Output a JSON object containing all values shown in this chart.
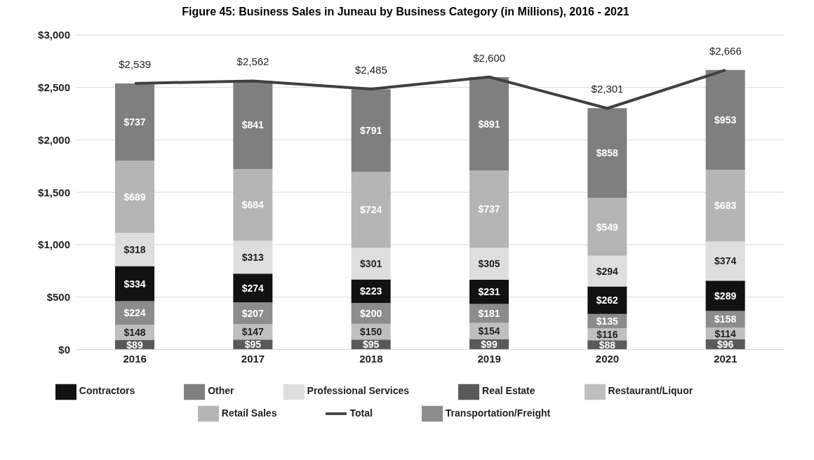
{
  "chart_data": {
    "type": "bar",
    "stacked": true,
    "title": "Figure 45: Business Sales in Juneau by Business Category (in Millions), 2016 - 2021",
    "categories": [
      "2016",
      "2017",
      "2018",
      "2019",
      "2020",
      "2021"
    ],
    "series": [
      {
        "name": "Real Estate",
        "color": "#595959",
        "values": [
          89,
          95,
          95,
          99,
          88,
          96
        ],
        "value_labels": [
          "$89",
          "$95",
          "$95",
          "$99",
          "$88",
          "$96"
        ]
      },
      {
        "name": "Restaurant/Liquor",
        "color": "#bfbfbf",
        "values": [
          148,
          147,
          150,
          154,
          116,
          114
        ],
        "value_labels": [
          "$148",
          "$147",
          "$150",
          "$154",
          "$116",
          "$114"
        ]
      },
      {
        "name": "Transportation/Freight",
        "color": "#8c8c8c",
        "values": [
          224,
          207,
          200,
          181,
          135,
          158
        ],
        "value_labels": [
          "$224",
          "$207",
          "$200",
          "$181",
          "$135",
          "$158"
        ]
      },
      {
        "name": "Contractors",
        "color": "#111111",
        "values": [
          334,
          274,
          223,
          231,
          262,
          289
        ],
        "value_labels": [
          "$334",
          "$274",
          "$223",
          "$231",
          "$262",
          "$289"
        ]
      },
      {
        "name": "Professional Services",
        "color": "#dedede",
        "values": [
          318,
          313,
          301,
          305,
          294,
          374
        ],
        "value_labels": [
          "$318",
          "$313",
          "$301",
          "$305",
          "$294",
          "$374"
        ]
      },
      {
        "name": "Retail Sales",
        "color": "#b5b5b5",
        "values": [
          689,
          684,
          724,
          737,
          549,
          683
        ],
        "value_labels": [
          "$689",
          "$684",
          "$724",
          "$737",
          "$549",
          "$683"
        ]
      },
      {
        "name": "Other",
        "color": "#7f7f7f",
        "values": [
          737,
          841,
          791,
          891,
          858,
          953
        ],
        "value_labels": [
          "$737",
          "$841",
          "$791",
          "$891",
          "$858",
          "$953"
        ]
      },
      {
        "name": "Total",
        "type": "line",
        "color": "#404040",
        "values": [
          2539,
          2562,
          2485,
          2600,
          2301,
          2666
        ],
        "value_labels": [
          "$2,539",
          "$2,562",
          "$2,485",
          "$2,600",
          "$2,301",
          "$2,666"
        ]
      }
    ],
    "ylim": [
      0,
      3000
    ],
    "yticks": [
      {
        "value": 0,
        "label": "$0"
      },
      {
        "value": 500,
        "label": "$500"
      },
      {
        "value": 1000,
        "label": "$1,000"
      },
      {
        "value": 1500,
        "label": "$1,500"
      },
      {
        "value": 2000,
        "label": "$2,000"
      },
      {
        "value": 2500,
        "label": "$2,500"
      },
      {
        "value": 3000,
        "label": "$3,000"
      }
    ],
    "grid": "y",
    "legend": "bottom",
    "marker": "none"
  }
}
